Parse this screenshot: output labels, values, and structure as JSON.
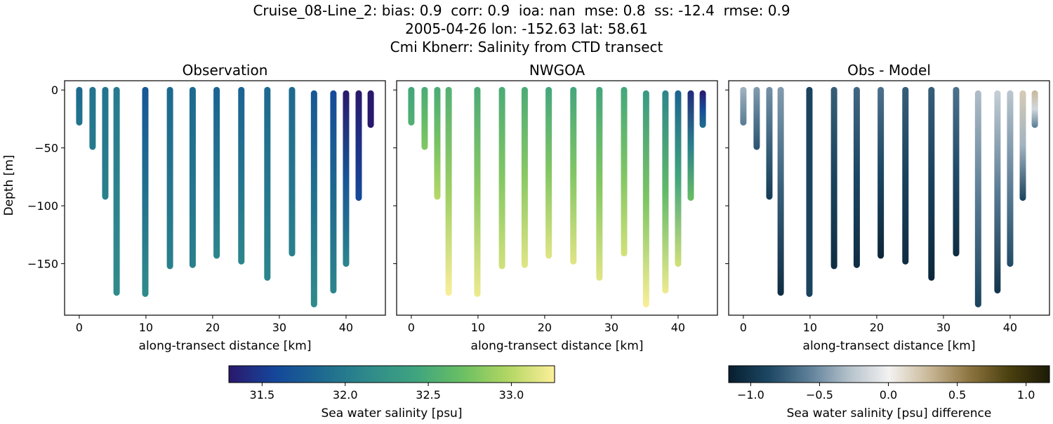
{
  "title_lines": [
    "Cruise_08-Line_2: bias: 0.9  corr: 0.9  ioa: nan  mse: 0.8  ss: -12.4  rmse: 0.9",
    "2005-04-26 lon: -152.63 lat: 58.61",
    "Cmi Kbnerr: Salinity from CTD transect"
  ],
  "chart_data": [
    {
      "type": "scatter",
      "title": "Observation",
      "xlabel": "along-transect distance [km]",
      "ylabel": "Depth [m]",
      "xlim": [
        -2.2,
        45.9
      ],
      "ylim": [
        -194.5,
        8
      ],
      "xticks": [
        0,
        10,
        20,
        30,
        40
      ],
      "yticks": [
        0,
        -50,
        -100,
        -150
      ],
      "ytick_labels": [
        "0",
        "−50",
        "−100",
        "−150"
      ],
      "colormap": "haline",
      "field": "obs"
    },
    {
      "type": "scatter",
      "title": "NWGOA",
      "xlabel": "along-transect distance [km]",
      "xlim": [
        -2.2,
        45.9
      ],
      "ylim": [
        -194.5,
        8
      ],
      "xticks": [
        0,
        10,
        20,
        30,
        40
      ],
      "yticks": [
        0,
        -50,
        -100,
        -150
      ],
      "colormap": "haline",
      "field": "model"
    },
    {
      "type": "scatter",
      "title": "Obs - Model",
      "xlabel": "along-transect distance [km]",
      "xlim": [
        -2.2,
        45.9
      ],
      "ylim": [
        -194.5,
        8
      ],
      "xticks": [
        0,
        10,
        20,
        30,
        40
      ],
      "yticks": [
        0,
        -50,
        -100,
        -150
      ],
      "colormap": "diff",
      "field": "diff"
    }
  ],
  "casts": [
    {
      "x": 0,
      "top": 0,
      "bottom": -28,
      "obs": [
        31.85,
        31.95
      ],
      "model": [
        32.45,
        32.55
      ],
      "diff": [
        -0.35,
        -0.6
      ]
    },
    {
      "x": 2,
      "top": 0,
      "bottom": -49,
      "obs": [
        31.95,
        32.0
      ],
      "model": [
        32.5,
        32.8
      ],
      "diff": [
        -0.45,
        -0.8
      ]
    },
    {
      "x": 3.9,
      "top": 0,
      "bottom": -92,
      "obs": [
        31.95,
        32.05
      ],
      "model": [
        32.5,
        33.0
      ],
      "diff": [
        -0.5,
        -0.95
      ]
    },
    {
      "x": 5.6,
      "top": 0,
      "bottom": -175,
      "obs": [
        32.0,
        32.15
      ],
      "model": [
        32.55,
        33.25
      ],
      "diff": [
        -0.45,
        -1.05
      ]
    },
    {
      "x": 9.9,
      "top": 0,
      "bottom": -176,
      "obs": [
        31.7,
        32.15
      ],
      "model": [
        32.5,
        33.2
      ],
      "diff": [
        -0.9,
        -0.9
      ]
    },
    {
      "x": 13.6,
      "top": 0,
      "bottom": -152,
      "obs": [
        31.85,
        32.05
      ],
      "model": [
        32.5,
        33.1
      ],
      "diff": [
        -0.75,
        -1.05
      ]
    },
    {
      "x": 17,
      "top": 0,
      "bottom": -151,
      "obs": [
        31.85,
        32.05
      ],
      "model": [
        32.5,
        33.15
      ],
      "diff": [
        -0.7,
        -1.05
      ]
    },
    {
      "x": 20.6,
      "top": 0,
      "bottom": -143,
      "obs": [
        31.8,
        32.1
      ],
      "model": [
        32.45,
        33.15
      ],
      "diff": [
        -0.65,
        -1.1
      ]
    },
    {
      "x": 24.3,
      "top": 0,
      "bottom": -148,
      "obs": [
        31.8,
        32.1
      ],
      "model": [
        32.45,
        33.15
      ],
      "diff": [
        -0.75,
        -1.05
      ]
    },
    {
      "x": 28.2,
      "top": 0,
      "bottom": -162,
      "obs": [
        31.85,
        32.1
      ],
      "model": [
        32.45,
        33.15
      ],
      "diff": [
        -0.75,
        -1.1
      ]
    },
    {
      "x": 31.9,
      "top": 0,
      "bottom": -141,
      "obs": [
        31.85,
        32.05
      ],
      "model": [
        32.45,
        33.1
      ],
      "diff": [
        -0.65,
        -1.05
      ]
    },
    {
      "x": 35.2,
      "top": -3,
      "bottom": -185,
      "obs": [
        31.7,
        32.15
      ],
      "model": [
        32.3,
        33.25
      ],
      "diff": [
        -0.3,
        -0.9
      ]
    },
    {
      "x": 38.1,
      "top": -3,
      "bottom": -173,
      "obs": [
        31.6,
        32.1
      ],
      "model": [
        32.1,
        33.2
      ],
      "diff": [
        -0.2,
        -1.0
      ]
    },
    {
      "x": 40,
      "top": -3,
      "bottom": -150,
      "obs": [
        31.3,
        32.1
      ],
      "model": [
        31.8,
        33.1
      ],
      "diff": [
        -0.25,
        -0.85
      ]
    },
    {
      "x": 41.9,
      "top": -3,
      "bottom": -93,
      "obs": [
        31.3,
        31.6
      ],
      "model": [
        31.4,
        32.7
      ],
      "diff": [
        0.2,
        -0.9
      ]
    },
    {
      "x": 43.7,
      "top": -3,
      "bottom": -30,
      "obs": [
        31.25,
        31.3
      ],
      "model": [
        31.3,
        31.9
      ],
      "diff": [
        0.3,
        -0.6
      ]
    }
  ],
  "colorbars": [
    {
      "label": "Sea water salinity [psu]",
      "range": [
        31.3,
        33.26
      ],
      "ticks": [
        31.5,
        32.0,
        32.5,
        33.0
      ],
      "tick_labels": [
        "31.5",
        "32.0",
        "32.5",
        "33.0"
      ],
      "colormap": "haline"
    },
    {
      "label": "Sea water salinity [psu] difference",
      "range": [
        -1.16,
        1.17
      ],
      "ticks": [
        -1.0,
        -0.5,
        0.0,
        0.5,
        1.0
      ],
      "tick_labels": [
        "−1.0",
        "−0.5",
        "0.0",
        "0.5",
        "1.0"
      ],
      "colormap": "diff"
    }
  ],
  "colormaps": {
    "haline": [
      "#2a186c",
      "#14479b",
      "#1d6a8f",
      "#2f8a8b",
      "#3ea37f",
      "#69bf63",
      "#b2d663",
      "#fdef9a"
    ],
    "diff": [
      "#071e2e",
      "#1c4764",
      "#5d7f98",
      "#b4c1cb",
      "#f3f2f1",
      "#c9b898",
      "#8d7440",
      "#4a400f",
      "#1c1a07"
    ]
  }
}
